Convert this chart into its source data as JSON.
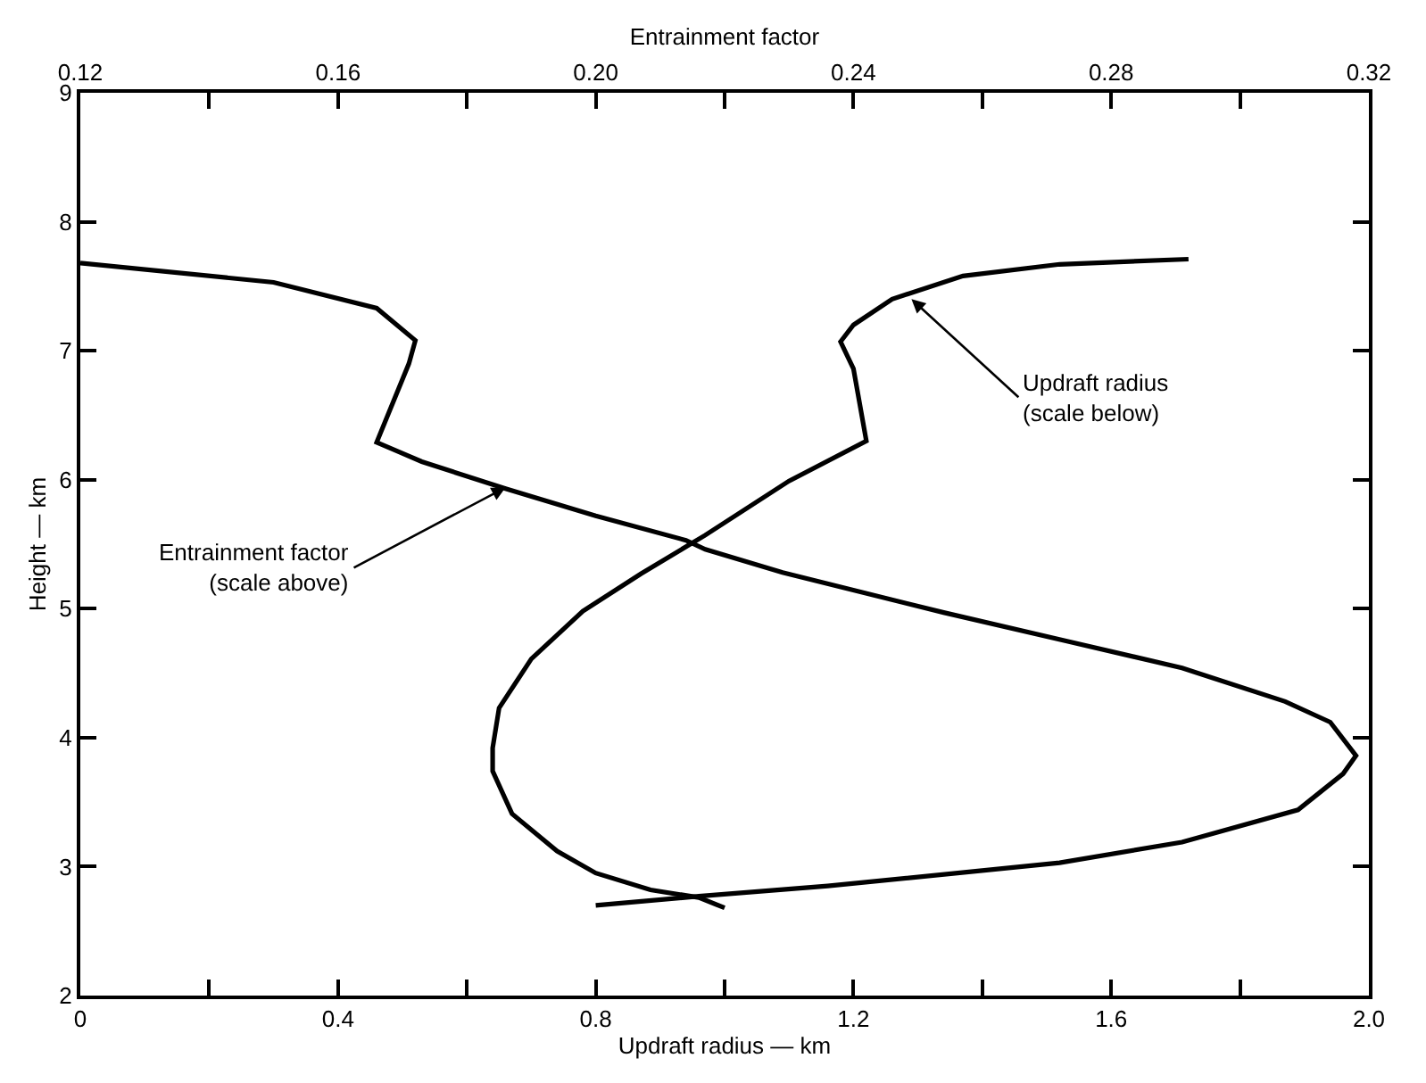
{
  "chart_data": {
    "type": "line",
    "xlabel": "Updraft radius — km",
    "x2label": "Entrainment factor",
    "ylabel": "Height — km",
    "xlim": [
      0,
      2.0
    ],
    "xticks": [
      0,
      {
        "value": 0.2,
        "label": null
      },
      0.4,
      {
        "value": 0.6,
        "label": null
      },
      0.8,
      {
        "value": 1.0,
        "label": null
      },
      1.2,
      {
        "value": 1.4,
        "label": null
      },
      1.6,
      {
        "value": 1.8,
        "label": null
      },
      {
        "value": 2.0,
        "label": "2.0"
      }
    ],
    "x2lim": [
      0.12,
      0.32
    ],
    "x2ticks": [
      0.12,
      {
        "value": 0.14,
        "label": null
      },
      0.16,
      {
        "value": 0.18,
        "label": null
      },
      {
        "value": 0.2,
        "label": "0.20"
      },
      {
        "value": 0.22,
        "label": null
      },
      0.24,
      {
        "value": 0.26,
        "label": null
      },
      0.28,
      {
        "value": 0.3,
        "label": null
      },
      0.32
    ],
    "ylim": [
      2,
      9
    ],
    "yticks": [
      2,
      3,
      4,
      5,
      6,
      7,
      8,
      9
    ],
    "series": [
      {
        "axis": "x2",
        "color": "#000000",
        "x": [
          0.12,
          0.15,
          0.166,
          0.172,
          0.171,
          0.166,
          0.173,
          0.186,
          0.2,
          0.214,
          0.217,
          0.229,
          0.254,
          0.273,
          0.291,
          0.307,
          0.314,
          0.318,
          0.316,
          0.309,
          0.291,
          0.272,
          0.236,
          0.216,
          0.2
        ],
        "values": [
          7.68,
          7.53,
          7.33,
          7.08,
          6.9,
          6.29,
          6.14,
          5.93,
          5.72,
          5.53,
          5.46,
          5.28,
          4.97,
          4.75,
          4.54,
          4.28,
          4.12,
          3.86,
          3.72,
          3.44,
          3.19,
          3.03,
          2.85,
          2.77,
          2.7
        ]
      },
      {
        "color": "#000000",
        "x": [
          1.0,
          0.96,
          0.885,
          0.8,
          0.74,
          0.67,
          0.64,
          0.64,
          0.65,
          0.7,
          0.78,
          0.87,
          0.97,
          1.1,
          1.22,
          1.2,
          1.18,
          1.2,
          1.26,
          1.37,
          1.52,
          1.72
        ],
        "values": [
          2.68,
          2.76,
          2.82,
          2.95,
          3.12,
          3.41,
          3.74,
          3.92,
          4.23,
          4.61,
          4.98,
          5.27,
          5.57,
          5.99,
          6.3,
          6.86,
          7.07,
          7.2,
          7.4,
          7.58,
          7.67,
          7.71
        ]
      }
    ],
    "annotations": [
      {
        "text": "Entrainment factor\n(scale above)",
        "x": 0.66,
        "y": 5.94
      },
      {
        "text": "Updraft radius\n(scale below)",
        "x": 1.29,
        "y": 7.4
      }
    ]
  }
}
